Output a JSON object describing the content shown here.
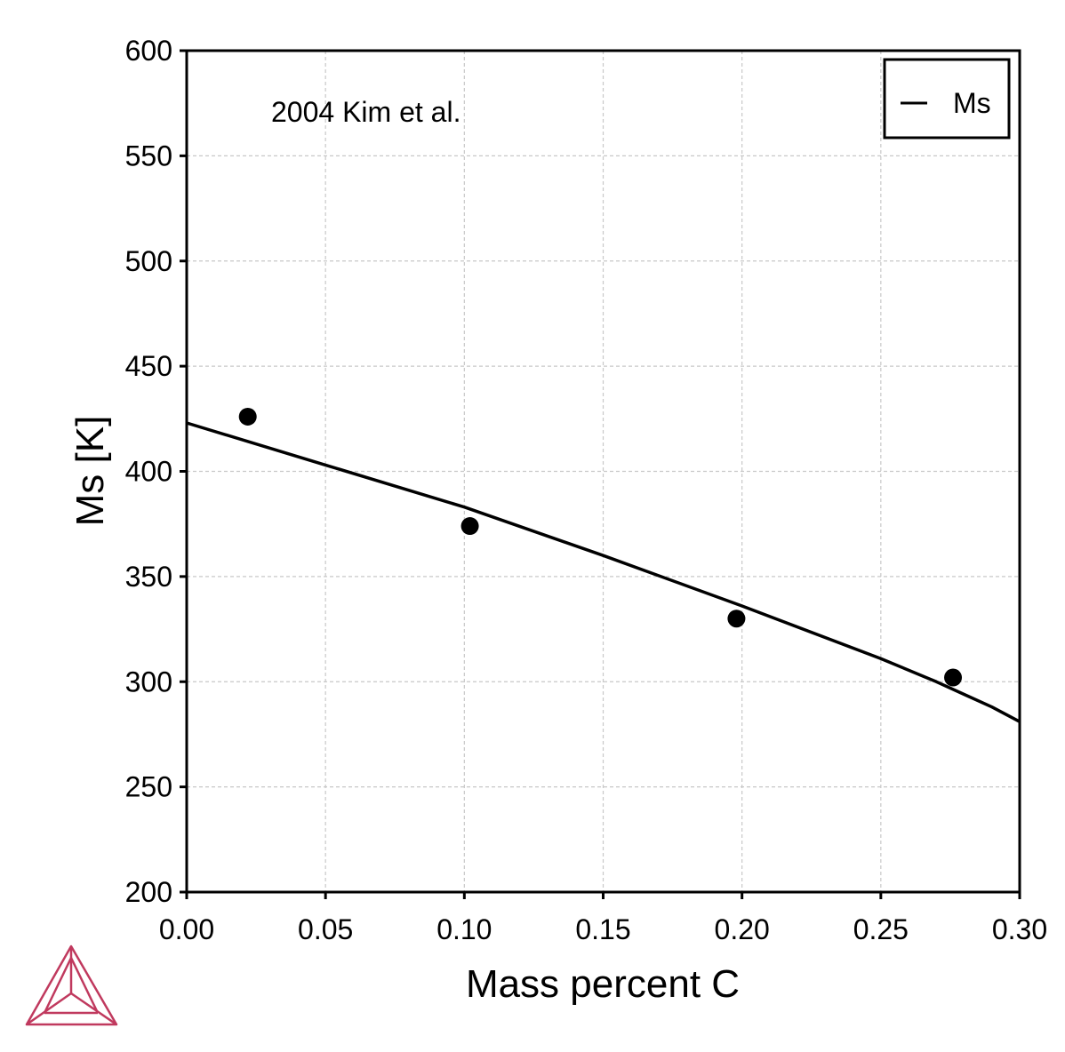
{
  "chart_data": {
    "type": "line",
    "xlabel": "Mass percent C",
    "ylabel": "Ms [K]",
    "xlim": [
      0.0,
      0.3
    ],
    "ylim": [
      200,
      600
    ],
    "x_ticks": [
      "0.00",
      "0.05",
      "0.10",
      "0.15",
      "0.20",
      "0.25",
      "0.30"
    ],
    "y_ticks": [
      "200",
      "250",
      "300",
      "350",
      "400",
      "450",
      "500",
      "550",
      "600"
    ],
    "grid": true,
    "legend_position": "top-right",
    "annotation": "2004 Kim et al.",
    "series": [
      {
        "name": "Ms",
        "kind": "line",
        "color": "#000000",
        "x": [
          0.0,
          0.05,
          0.1,
          0.15,
          0.2,
          0.25,
          0.27,
          0.28,
          0.29,
          0.3
        ],
        "y": [
          423,
          403,
          383,
          360,
          336,
          311,
          300,
          294,
          288,
          281
        ]
      },
      {
        "kind": "scatter",
        "color": "#000000",
        "x": [
          0.022,
          0.102,
          0.198,
          0.276
        ],
        "y": [
          426,
          374,
          330,
          302
        ]
      }
    ]
  },
  "logo": {
    "name": "thermo-calc-triangle-logo",
    "color": "#c0395e"
  }
}
